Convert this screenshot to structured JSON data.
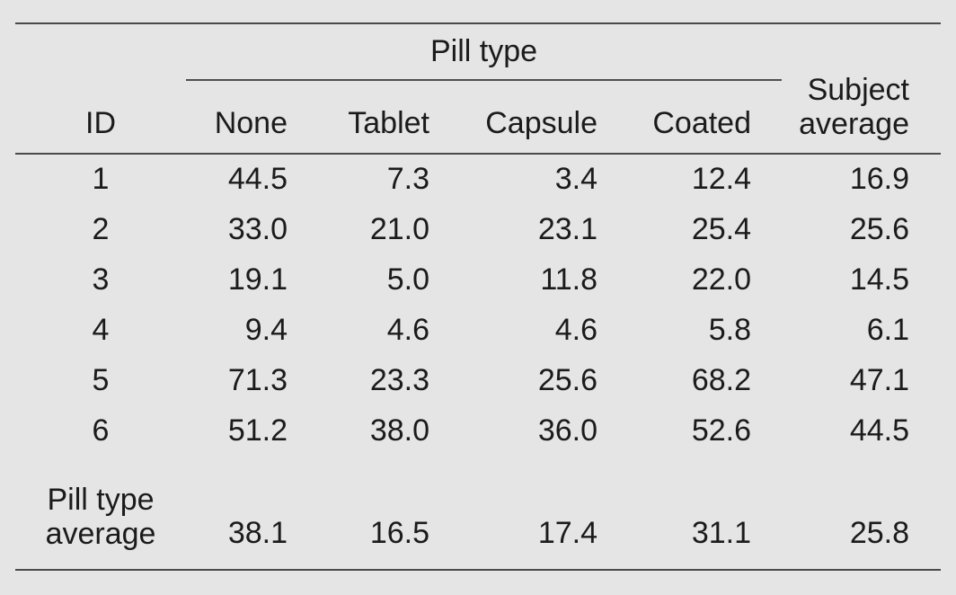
{
  "table": {
    "spanner": "Pill type",
    "headers": {
      "id": "ID",
      "none": "None",
      "tablet": "Tablet",
      "capsule": "Capsule",
      "coated": "Coated",
      "subject_line1": "Subject",
      "subject_line2": "average"
    },
    "rows": [
      {
        "id": "1",
        "none": "44.5",
        "tablet": "7.3",
        "capsule": "3.4",
        "coated": "12.4",
        "avg": "16.9"
      },
      {
        "id": "2",
        "none": "33.0",
        "tablet": "21.0",
        "capsule": "23.1",
        "coated": "25.4",
        "avg": "25.6"
      },
      {
        "id": "3",
        "none": "19.1",
        "tablet": "5.0",
        "capsule": "11.8",
        "coated": "22.0",
        "avg": "14.5"
      },
      {
        "id": "4",
        "none": "9.4",
        "tablet": "4.6",
        "capsule": "4.6",
        "coated": "5.8",
        "avg": "6.1"
      },
      {
        "id": "5",
        "none": "71.3",
        "tablet": "23.3",
        "capsule": "25.6",
        "coated": "68.2",
        "avg": "47.1"
      },
      {
        "id": "6",
        "none": "51.2",
        "tablet": "38.0",
        "capsule": "36.0",
        "coated": "52.6",
        "avg": "44.5"
      }
    ],
    "footer": {
      "label_line1": "Pill type",
      "label_line2": "average",
      "none": "38.1",
      "tablet": "16.5",
      "capsule": "17.4",
      "coated": "31.1",
      "avg": "25.8"
    }
  },
  "colors": {
    "background": "#e5e5e5",
    "text": "#1b1b1b",
    "rule_heavy": "#4a4a4a",
    "rule_light": "#4f4f4f"
  }
}
